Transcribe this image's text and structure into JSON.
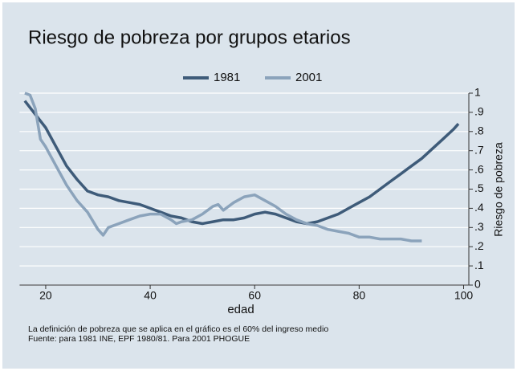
{
  "chart_data": {
    "type": "line",
    "title": "Riesgo de pobreza por grupos etarios",
    "xlabel": "edad",
    "ylabel": "Riesgo de pobreza",
    "notes": [
      "La definición de pobreza que se aplica en el gráfico es el 60% del ingreso medio",
      "Fuente: para 1981 INE, EPF 1980/81. Para 2001 PHOGUE"
    ],
    "series": [
      {
        "name": "1981",
        "color": "#3e5b79",
        "x": [
          16,
          18,
          20,
          22,
          24,
          26,
          28,
          30,
          32,
          34,
          36,
          38,
          40,
          42,
          44,
          46,
          48,
          50,
          52,
          54,
          56,
          58,
          60,
          62,
          64,
          66,
          68,
          70,
          72,
          74,
          76,
          78,
          80,
          82,
          84,
          86,
          88,
          90,
          92,
          94,
          96,
          98,
          99
        ],
        "values": [
          0.96,
          0.89,
          0.82,
          0.72,
          0.62,
          0.55,
          0.49,
          0.47,
          0.46,
          0.44,
          0.43,
          0.42,
          0.4,
          0.38,
          0.36,
          0.35,
          0.33,
          0.32,
          0.33,
          0.34,
          0.34,
          0.35,
          0.37,
          0.38,
          0.37,
          0.35,
          0.33,
          0.32,
          0.33,
          0.35,
          0.37,
          0.4,
          0.43,
          0.46,
          0.5,
          0.54,
          0.58,
          0.62,
          0.66,
          0.71,
          0.76,
          0.81,
          0.84
        ]
      },
      {
        "name": "2001",
        "color": "#8ba3bb",
        "x": [
          16,
          17,
          18,
          19,
          20,
          22,
          24,
          26,
          28,
          30,
          31,
          32,
          34,
          36,
          38,
          40,
          42,
          44,
          45,
          46,
          48,
          50,
          52,
          53,
          54,
          56,
          58,
          60,
          62,
          64,
          66,
          68,
          70,
          72,
          74,
          76,
          78,
          80,
          82,
          84,
          86,
          88,
          90,
          92
        ],
        "values": [
          1.0,
          0.99,
          0.92,
          0.76,
          0.72,
          0.62,
          0.52,
          0.44,
          0.38,
          0.29,
          0.26,
          0.3,
          0.32,
          0.34,
          0.36,
          0.37,
          0.37,
          0.34,
          0.32,
          0.33,
          0.34,
          0.37,
          0.41,
          0.42,
          0.39,
          0.43,
          0.46,
          0.47,
          0.44,
          0.41,
          0.37,
          0.34,
          0.32,
          0.31,
          0.29,
          0.28,
          0.27,
          0.25,
          0.25,
          0.24,
          0.24,
          0.24,
          0.23,
          0.23
        ]
      }
    ],
    "xlim": [
      15,
      101
    ],
    "xticks": [
      20,
      40,
      60,
      80,
      100
    ],
    "ylim": [
      0,
      1
    ],
    "yticks": [
      0,
      {
        "value": 0.1,
        "label": ".1"
      },
      {
        "value": 0.2,
        "label": ".2"
      },
      {
        "value": 0.3,
        "label": ".3"
      },
      {
        "value": 0.4,
        "label": ".4"
      },
      {
        "value": 0.5,
        "label": ".5"
      },
      {
        "value": 0.6,
        "label": ".6"
      },
      {
        "value": 0.7,
        "label": ".7"
      },
      {
        "value": 0.8,
        "label": ".8"
      },
      {
        "value": 0.9,
        "label": ".9"
      },
      1
    ],
    "grid": true,
    "legend": "top"
  }
}
